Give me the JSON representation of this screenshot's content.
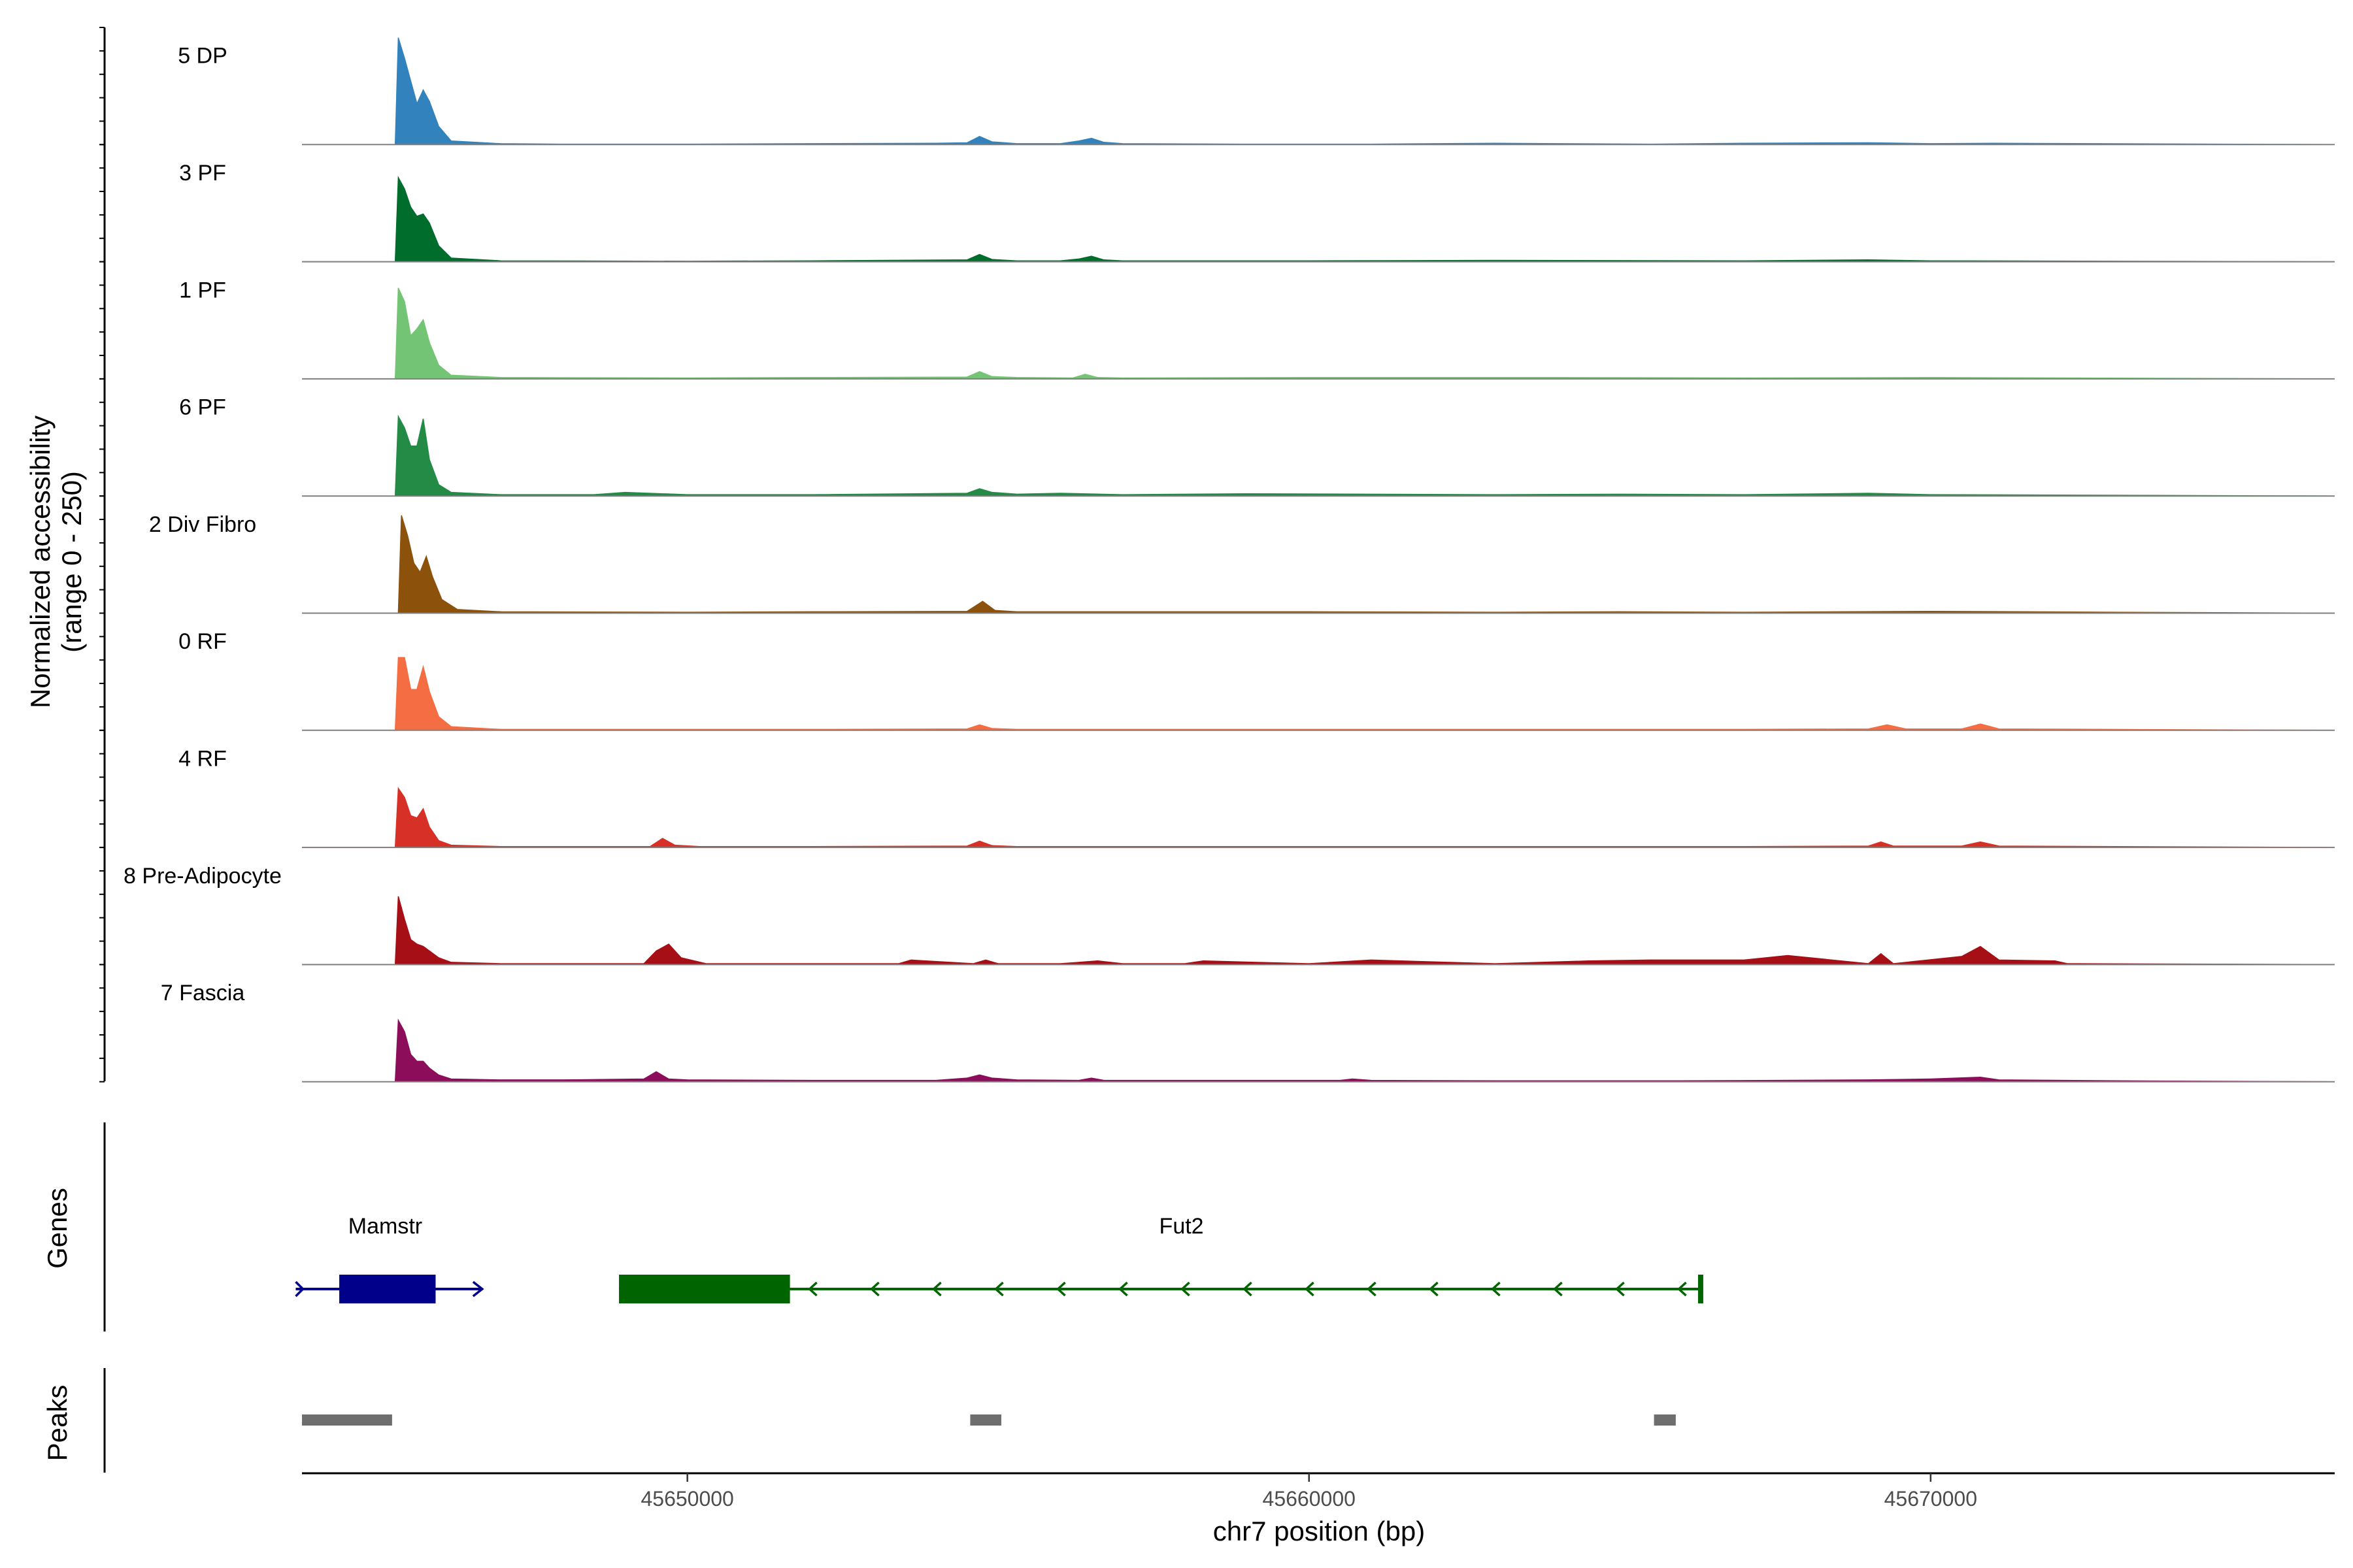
{
  "chart_data": {
    "type": "area",
    "title": "",
    "ylabel_line1": "Normalized accessibility",
    "ylabel_line2": "(range 0 - 250)",
    "xlabel": "chr7 position (bp)",
    "x_ticks": [
      "45650000",
      "45660000",
      "45670000"
    ],
    "x_tick_values": [
      45650000,
      45660000,
      45670000
    ],
    "xlim": [
      45643800,
      45676500
    ],
    "ylim": [
      0,
      250
    ],
    "grid": false,
    "series": [
      {
        "name": "5 DP",
        "color": "#3182bd",
        "x": [
          45643800,
          45645300,
          45645350,
          45645450,
          45645550,
          45645650,
          45645750,
          45645850,
          45646000,
          45646200,
          45647000,
          45648000,
          45650000,
          45652000,
          45654000,
          45654500,
          45654700,
          45654900,
          45655300,
          45656000,
          45656300,
          45656500,
          45656700,
          45657000,
          45659000,
          45661000,
          45663000,
          45664000,
          45665500,
          45667000,
          45669000,
          45670000,
          45671000,
          45676500
        ],
        "y": [
          0,
          0,
          235,
          190,
          140,
          90,
          120,
          95,
          40,
          8,
          2,
          1,
          1,
          2,
          3,
          4,
          18,
          6,
          2,
          2,
          8,
          14,
          5,
          2,
          1,
          1,
          3,
          2,
          1,
          3,
          4,
          2,
          3,
          0
        ]
      },
      {
        "name": "3 PF",
        "color": "#006d2c",
        "x": [
          45643800,
          45645300,
          45645350,
          45645450,
          45645550,
          45645650,
          45645750,
          45645850,
          45646000,
          45646200,
          45647000,
          45650000,
          45652000,
          45654500,
          45654700,
          45654900,
          45655300,
          45656000,
          45656300,
          45656500,
          45656700,
          45657000,
          45660000,
          45663000,
          45667000,
          45669000,
          45670000,
          45676500
        ],
        "y": [
          0,
          0,
          185,
          160,
          120,
          100,
          105,
          85,
          35,
          8,
          2,
          1,
          2,
          4,
          16,
          5,
          2,
          2,
          6,
          12,
          4,
          2,
          2,
          3,
          2,
          4,
          2,
          0
        ]
      },
      {
        "name": "1 PF",
        "color": "#74c476",
        "x": [
          45643800,
          45645300,
          45645350,
          45645450,
          45645550,
          45645650,
          45645750,
          45645850,
          45646000,
          45646200,
          45647000,
          45650000,
          45652000,
          45654500,
          45654700,
          45654900,
          45655300,
          45656200,
          45656400,
          45656600,
          45657000,
          45660000,
          45664000,
          45667000,
          45670000,
          45676500
        ],
        "y": [
          0,
          0,
          200,
          170,
          95,
          110,
          130,
          80,
          30,
          8,
          3,
          2,
          3,
          4,
          16,
          5,
          3,
          2,
          10,
          3,
          2,
          3,
          3,
          2,
          3,
          0
        ]
      },
      {
        "name": "6 PF",
        "color": "#238b45",
        "x": [
          45643800,
          45645300,
          45645350,
          45645450,
          45645550,
          45645650,
          45645750,
          45645850,
          45646000,
          45646200,
          45647000,
          45648500,
          45649000,
          45650000,
          45652000,
          45654500,
          45654700,
          45654900,
          45655300,
          45656000,
          45657000,
          45659000,
          45661000,
          45663000,
          45665000,
          45667000,
          45669000,
          45670000,
          45676500
        ],
        "y": [
          0,
          0,
          175,
          150,
          110,
          110,
          170,
          80,
          25,
          8,
          3,
          3,
          8,
          3,
          3,
          6,
          16,
          8,
          4,
          6,
          3,
          5,
          4,
          3,
          4,
          3,
          6,
          3,
          0
        ]
      },
      {
        "name": "2 Div Fibro",
        "color": "#8c510a",
        "x": [
          45643800,
          45645350,
          45645400,
          45645500,
          45645600,
          45645700,
          45645800,
          45645900,
          45646050,
          45646300,
          45647000,
          45650000,
          45652000,
          45654500,
          45654750,
          45654950,
          45655300,
          45657000,
          45660000,
          45663000,
          45665000,
          45667000,
          45670000,
          45673000,
          45676500
        ],
        "y": [
          0,
          0,
          215,
          170,
          110,
          90,
          125,
          80,
          30,
          8,
          3,
          2,
          3,
          4,
          26,
          6,
          3,
          3,
          3,
          2,
          3,
          2,
          4,
          2,
          0
        ]
      },
      {
        "name": "0 RF",
        "color": "#f46d43",
        "x": [
          45643800,
          45645300,
          45645350,
          45645450,
          45645550,
          45645650,
          45645750,
          45645850,
          45646000,
          45646200,
          45647000,
          45650000,
          45652000,
          45654500,
          45654700,
          45654900,
          45655300,
          45658000,
          45661000,
          45664000,
          45667000,
          45669000,
          45669300,
          45669600,
          45670500,
          45670800,
          45671100,
          45676500
        ],
        "y": [
          0,
          0,
          160,
          160,
          90,
          90,
          140,
          85,
          30,
          8,
          2,
          2,
          2,
          3,
          12,
          4,
          2,
          2,
          2,
          2,
          2,
          3,
          12,
          3,
          3,
          14,
          3,
          0
        ]
      },
      {
        "name": "4 RF",
        "color": "#d73027",
        "x": [
          45643800,
          45645300,
          45645350,
          45645450,
          45645550,
          45645650,
          45645750,
          45645850,
          45646000,
          45646200,
          45647000,
          45649400,
          45649600,
          45649800,
          45650200,
          45652000,
          45654500,
          45654700,
          45654900,
          45655300,
          45658000,
          45661000,
          45664000,
          45667000,
          45669000,
          45669200,
          45669400,
          45670500,
          45670800,
          45671100,
          45673000,
          45676500
        ],
        "y": [
          0,
          0,
          130,
          110,
          70,
          65,
          85,
          45,
          15,
          5,
          2,
          2,
          20,
          5,
          2,
          2,
          3,
          14,
          4,
          2,
          2,
          2,
          2,
          2,
          3,
          12,
          3,
          3,
          12,
          3,
          2,
          0
        ]
      },
      {
        "name": "8 Pre-Adipocyte",
        "color": "#a50f15",
        "x": [
          45643800,
          45645300,
          45645350,
          45645450,
          45645550,
          45645650,
          45645750,
          45645850,
          45646000,
          45646200,
          45647000,
          45649300,
          45649500,
          45649700,
          45649900,
          45650300,
          45652000,
          45653400,
          45653600,
          45654600,
          45654800,
          45655000,
          45656000,
          45656600,
          45657000,
          45658000,
          45658300,
          45660000,
          45661000,
          45663000,
          45664500,
          45665500,
          45667000,
          45667700,
          45669000,
          45669200,
          45669400,
          45670500,
          45670800,
          45671100,
          45672000,
          45672200,
          45676500
        ],
        "y": [
          0,
          0,
          150,
          100,
          55,
          45,
          40,
          30,
          15,
          5,
          2,
          2,
          30,
          45,
          15,
          2,
          2,
          2,
          10,
          2,
          10,
          2,
          2,
          8,
          2,
          2,
          8,
          2,
          10,
          2,
          8,
          10,
          10,
          20,
          2,
          24,
          2,
          18,
          40,
          10,
          8,
          2,
          0
        ]
      },
      {
        "name": "7 Fascia",
        "color": "#8c0d5a",
        "x": [
          45643800,
          45645300,
          45645350,
          45645450,
          45645550,
          45645650,
          45645750,
          45645850,
          45646000,
          45646200,
          45647000,
          45648000,
          45649300,
          45649500,
          45649700,
          45650000,
          45652000,
          45654000,
          45654500,
          45654700,
          45654900,
          45655300,
          45656300,
          45656500,
          45656700,
          45658000,
          45660500,
          45660700,
          45661000,
          45663000,
          45666000,
          45669000,
          45670000,
          45670800,
          45671100,
          45673000,
          45676500
        ],
        "y": [
          0,
          0,
          135,
          110,
          60,
          45,
          45,
          30,
          15,
          6,
          4,
          4,
          6,
          22,
          6,
          4,
          3,
          3,
          8,
          15,
          8,
          4,
          3,
          8,
          3,
          3,
          3,
          6,
          3,
          2,
          2,
          4,
          6,
          10,
          4,
          2,
          0
        ]
      }
    ],
    "genes": [
      {
        "name": "Mamstr",
        "strand": "+",
        "color": "#00008b",
        "start": 45643700,
        "end": 45646700,
        "exon_start": 45644400,
        "exon_end": 45645950
      },
      {
        "name": "Fut2",
        "strand": "-",
        "color": "#006400",
        "start": 45648900,
        "end": 45666300,
        "exon_start": 45648900,
        "exon_end": 45651650
      }
    ],
    "peaks": [
      {
        "start": 45643800,
        "end": 45645250
      },
      {
        "start": 45654550,
        "end": 45655050
      },
      {
        "start": 45665550,
        "end": 45665900
      }
    ],
    "panel_labels": {
      "genes": "Genes",
      "peaks": "Peaks"
    }
  }
}
